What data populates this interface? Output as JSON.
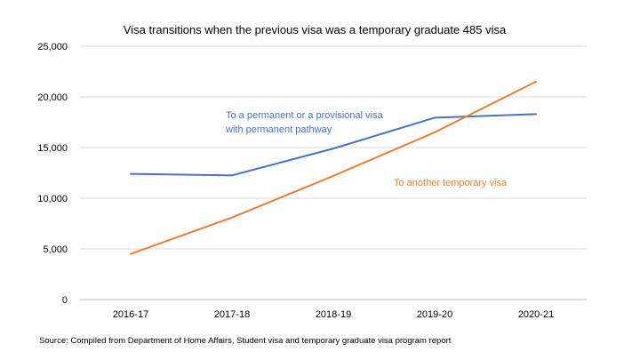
{
  "chart_data": {
    "type": "line",
    "title": "Visa transitions when the previous visa was a temporary graduate 485 visa",
    "categories": [
      "2016-17",
      "2017-18",
      "2018-19",
      "2019-20",
      "2020-21"
    ],
    "y_ticks": [
      "0",
      "5,000",
      "10,000",
      "15,000",
      "20,000",
      "25,000"
    ],
    "ylim": [
      0,
      25000
    ],
    "grid": true,
    "series": [
      {
        "name": "To a permanent or a provisional visa with permanent pathway",
        "label_lines": [
          "To a permanent or a provisional visa",
          "with permanent pathway"
        ],
        "color": "#4472c4",
        "values": [
          12400,
          12250,
          14900,
          17950,
          18300
        ]
      },
      {
        "name": "To another temporary visa",
        "label_lines": [
          "To another temporary visa"
        ],
        "color": "#ed7d31",
        "values": [
          4500,
          8100,
          12200,
          16500,
          21500
        ]
      }
    ],
    "source": "Source: Compiled from Department of Home Affairs, Student visa and temporary graduate visa program report"
  }
}
